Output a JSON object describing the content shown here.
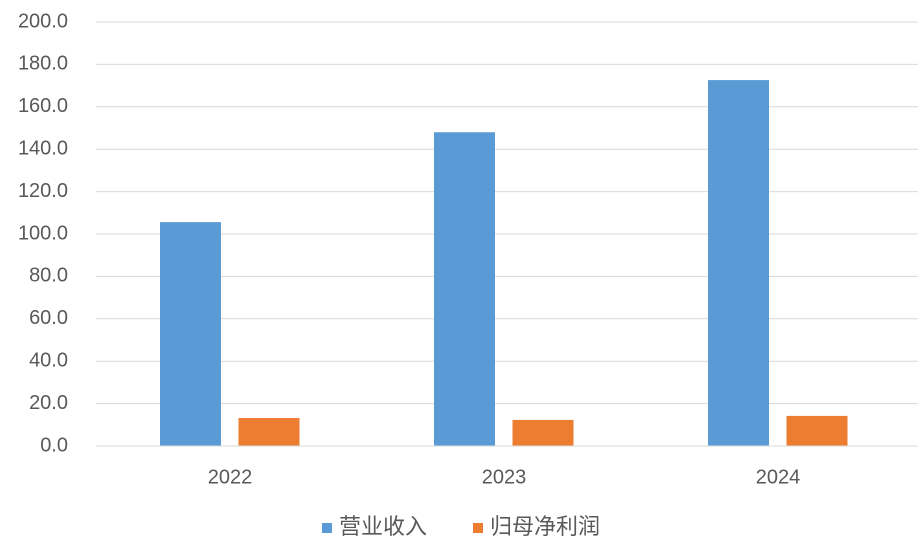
{
  "chart_data": {
    "type": "bar",
    "categories": [
      "2022",
      "2023",
      "2024"
    ],
    "series": [
      {
        "name": "营业收入",
        "color": "#5b9bd5",
        "values": [
          105.6,
          148.0,
          172.6
        ]
      },
      {
        "name": "归母净利润",
        "color": "#ed7d31",
        "values": [
          13.2,
          12.3,
          14.2
        ]
      }
    ],
    "ylim": [
      0,
      200
    ],
    "yticks": [
      {
        "value": 0,
        "label": "0.0"
      },
      {
        "value": 20,
        "label": "20.0"
      },
      {
        "value": 40,
        "label": "40.0"
      },
      {
        "value": 60,
        "label": "60.0"
      },
      {
        "value": 80,
        "label": "80.0"
      },
      {
        "value": 100,
        "label": "100.0"
      },
      {
        "value": 120,
        "label": "120.0"
      },
      {
        "value": 140,
        "label": "140.0"
      },
      {
        "value": 160,
        "label": "160.0"
      },
      {
        "value": 180,
        "label": "180.0"
      },
      {
        "value": 200,
        "label": "200.0"
      }
    ],
    "grid": true,
    "legend": "bottom"
  }
}
